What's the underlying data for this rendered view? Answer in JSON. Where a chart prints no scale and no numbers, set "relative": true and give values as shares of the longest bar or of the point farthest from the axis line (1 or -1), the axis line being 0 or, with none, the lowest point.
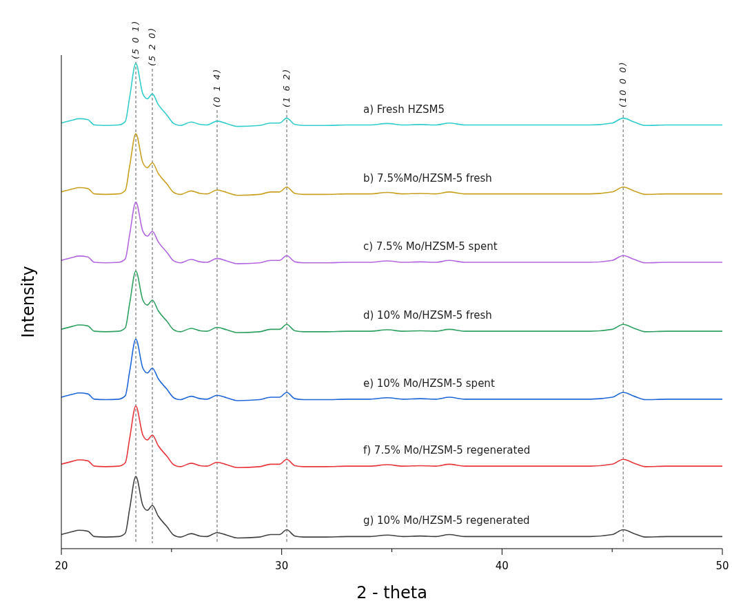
{
  "chart_data": {
    "type": "line",
    "relative": true,
    "xlabel": "2 - theta",
    "ylabel": "Intensity",
    "xlim": [
      20,
      50
    ],
    "xticks": [
      20,
      {
        "value": 25,
        "label": null
      },
      30,
      {
        "value": 35,
        "label": null
      },
      40,
      {
        "value": 45,
        "label": null
      },
      50
    ],
    "legend": false,
    "grid": false,
    "marker": "none",
    "line_style": "solid",
    "x": [
      20,
      20.5,
      20.8,
      21.2,
      21.5,
      22,
      22.6,
      22.9,
      23.1,
      23.38,
      23.7,
      23.9,
      24.13,
      24.4,
      24.8,
      25.1,
      25.4,
      25.9,
      26.3,
      26.6,
      27.07,
      27.5,
      28,
      29,
      29.5,
      29.9,
      30.23,
      30.6,
      31,
      32,
      33,
      34,
      34.8,
      35.5,
      36.3,
      37,
      37.6,
      38.3,
      39.5,
      41,
      42.5,
      44,
      45,
      45.5,
      46,
      46.5,
      47.5,
      48.7,
      50
    ],
    "series": [
      {
        "name": "a) Fresh HZSM5",
        "color": "#33cccc",
        "values": [
          0.877,
          0.883,
          0.886,
          0.884,
          0.873,
          0.872,
          0.873,
          0.88,
          0.93,
          1.0,
          0.937,
          0.927,
          0.937,
          0.915,
          0.893,
          0.876,
          0.872,
          0.879,
          0.874,
          0.873,
          0.881,
          0.876,
          0.87,
          0.872,
          0.877,
          0.877,
          0.887,
          0.874,
          0.872,
          0.872,
          0.873,
          0.873,
          0.876,
          0.873,
          0.874,
          0.873,
          0.877,
          0.873,
          0.873,
          0.873,
          0.873,
          0.873,
          0.877,
          0.887,
          0.879,
          0.872,
          0.873,
          0.873,
          0.873
        ]
      },
      {
        "name": "b) 7.5%Mo/HZSM-5 fresh",
        "color": "#c9a020",
        "values": [
          0.735,
          0.741,
          0.744,
          0.742,
          0.731,
          0.73,
          0.731,
          0.738,
          0.788,
          0.855,
          0.795,
          0.785,
          0.795,
          0.773,
          0.751,
          0.734,
          0.73,
          0.737,
          0.732,
          0.731,
          0.739,
          0.734,
          0.728,
          0.73,
          0.735,
          0.735,
          0.745,
          0.732,
          0.73,
          0.73,
          0.731,
          0.731,
          0.734,
          0.731,
          0.732,
          0.731,
          0.735,
          0.731,
          0.731,
          0.731,
          0.731,
          0.731,
          0.735,
          0.745,
          0.737,
          0.73,
          0.731,
          0.731,
          0.731
        ]
      },
      {
        "name": "c) 7.5% Mo/HZSM-5 spent",
        "color": "#b366e0",
        "values": [
          0.594,
          0.6,
          0.603,
          0.601,
          0.59,
          0.589,
          0.59,
          0.597,
          0.647,
          0.714,
          0.654,
          0.644,
          0.654,
          0.632,
          0.61,
          0.593,
          0.589,
          0.596,
          0.591,
          0.59,
          0.598,
          0.593,
          0.587,
          0.589,
          0.594,
          0.594,
          0.604,
          0.591,
          0.589,
          0.589,
          0.59,
          0.59,
          0.593,
          0.59,
          0.591,
          0.59,
          0.594,
          0.59,
          0.59,
          0.59,
          0.59,
          0.59,
          0.594,
          0.604,
          0.596,
          0.589,
          0.59,
          0.59,
          0.59
        ]
      },
      {
        "name": "d) 10% Mo/HZSM-5 fresh",
        "color": "#2ea060",
        "values": [
          0.452,
          0.458,
          0.461,
          0.459,
          0.448,
          0.447,
          0.448,
          0.455,
          0.505,
          0.572,
          0.512,
          0.502,
          0.512,
          0.49,
          0.468,
          0.451,
          0.447,
          0.454,
          0.449,
          0.448,
          0.456,
          0.451,
          0.445,
          0.447,
          0.452,
          0.452,
          0.462,
          0.449,
          0.447,
          0.447,
          0.448,
          0.448,
          0.451,
          0.448,
          0.449,
          0.448,
          0.452,
          0.448,
          0.448,
          0.448,
          0.448,
          0.448,
          0.452,
          0.462,
          0.454,
          0.447,
          0.448,
          0.448,
          0.448
        ]
      },
      {
        "name": "e) 10% Mo/HZSM-5 spent",
        "color": "#1f66d9",
        "values": [
          0.312,
          0.318,
          0.321,
          0.319,
          0.308,
          0.307,
          0.308,
          0.315,
          0.365,
          0.432,
          0.372,
          0.362,
          0.372,
          0.35,
          0.328,
          0.311,
          0.307,
          0.314,
          0.309,
          0.308,
          0.316,
          0.311,
          0.305,
          0.307,
          0.312,
          0.312,
          0.322,
          0.309,
          0.307,
          0.307,
          0.308,
          0.308,
          0.311,
          0.308,
          0.309,
          0.308,
          0.312,
          0.308,
          0.308,
          0.308,
          0.308,
          0.308,
          0.312,
          0.322,
          0.314,
          0.307,
          0.308,
          0.308,
          0.308
        ]
      },
      {
        "name": "f) 7.5% Mo/HZSM-5 regenerated",
        "color": "#e8343a",
        "values": [
          0.174,
          0.18,
          0.183,
          0.181,
          0.17,
          0.169,
          0.17,
          0.177,
          0.227,
          0.294,
          0.234,
          0.224,
          0.234,
          0.212,
          0.19,
          0.173,
          0.169,
          0.176,
          0.171,
          0.17,
          0.178,
          0.173,
          0.167,
          0.169,
          0.174,
          0.174,
          0.184,
          0.171,
          0.169,
          0.169,
          0.17,
          0.17,
          0.173,
          0.17,
          0.171,
          0.17,
          0.174,
          0.17,
          0.17,
          0.17,
          0.17,
          0.17,
          0.174,
          0.184,
          0.176,
          0.169,
          0.17,
          0.17,
          0.17
        ]
      },
      {
        "name": "g) 10% Mo/HZSM-5 regenerated",
        "color": "#404040",
        "values": [
          0.029,
          0.035,
          0.038,
          0.036,
          0.025,
          0.024,
          0.025,
          0.032,
          0.082,
          0.149,
          0.089,
          0.079,
          0.089,
          0.067,
          0.045,
          0.028,
          0.024,
          0.031,
          0.026,
          0.025,
          0.033,
          0.028,
          0.022,
          0.024,
          0.029,
          0.029,
          0.039,
          0.026,
          0.024,
          0.024,
          0.025,
          0.025,
          0.028,
          0.025,
          0.026,
          0.025,
          0.029,
          0.025,
          0.025,
          0.025,
          0.025,
          0.025,
          0.029,
          0.039,
          0.031,
          0.024,
          0.025,
          0.025,
          0.025
        ]
      }
    ],
    "ref_lines": [
      {
        "axis": "x",
        "value": 23.38,
        "color": "#333333",
        "line_style": "dashed"
      },
      {
        "axis": "x",
        "value": 24.13,
        "color": "#333333",
        "line_style": "dashed"
      },
      {
        "axis": "x",
        "value": 27.07,
        "color": "#333333",
        "line_style": "dashed"
      },
      {
        "axis": "x",
        "value": 30.23,
        "color": "#333333",
        "line_style": "dashed"
      },
      {
        "axis": "x",
        "value": 45.5,
        "color": "#333333",
        "line_style": "dashed"
      }
    ],
    "annotations": [
      "(5 0 1)",
      "(5 2 0)",
      "(0 1 4)",
      "(1 6 2)",
      "(10 0 0)"
    ]
  }
}
